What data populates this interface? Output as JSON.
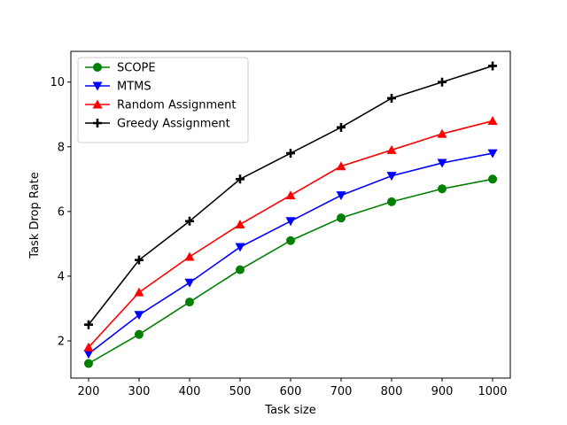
{
  "chart_data": {
    "type": "line",
    "xlabel": "Task size",
    "ylabel": "Task Drop Rate",
    "x": [
      200,
      300,
      400,
      500,
      600,
      700,
      800,
      900,
      1000
    ],
    "xlim": [
      165,
      1035
    ],
    "ylim": [
      0.85,
      10.95
    ],
    "xticks": [
      200,
      300,
      400,
      500,
      600,
      700,
      800,
      900,
      1000
    ],
    "yticks": [
      2,
      4,
      6,
      8,
      10
    ],
    "grid": false,
    "legend_position": "top-left",
    "series": [
      {
        "name": "SCOPE",
        "color": "#008000",
        "marker": "circle",
        "values": [
          1.3,
          2.2,
          3.2,
          4.2,
          5.1,
          5.8,
          6.3,
          6.7,
          7.0
        ]
      },
      {
        "name": "MTMS",
        "color": "#0000ff",
        "marker": "triangle-down",
        "values": [
          1.6,
          2.8,
          3.8,
          4.9,
          5.7,
          6.5,
          7.1,
          7.5,
          7.8
        ]
      },
      {
        "name": "Random Assignment",
        "color": "#ff0000",
        "marker": "triangle-up",
        "values": [
          1.8,
          3.5,
          4.6,
          5.6,
          6.5,
          7.4,
          7.9,
          8.4,
          8.8
        ]
      },
      {
        "name": "Greedy Assignment",
        "color": "#000000",
        "marker": "plus",
        "values": [
          2.5,
          4.5,
          5.7,
          7.0,
          7.8,
          8.6,
          9.5,
          10.0,
          10.5
        ]
      }
    ]
  }
}
